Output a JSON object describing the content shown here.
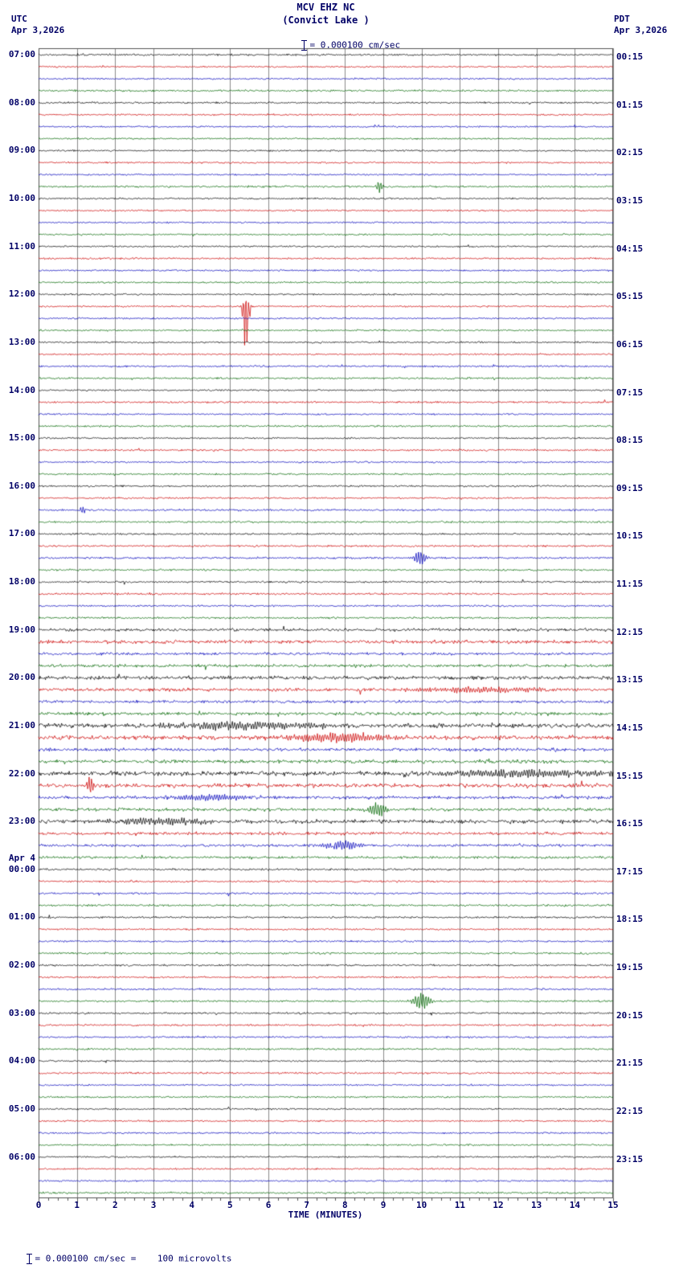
{
  "title": {
    "station": "MCV EHZ NC",
    "location": "(Convict Lake )"
  },
  "header_left": {
    "tz": "UTC",
    "date": "Apr 3,2026"
  },
  "header_right": {
    "tz": "PDT",
    "date": "Apr 3,2026"
  },
  "scale": {
    "top_label": "= 0.000100 cm/sec",
    "bottom_label": "= 0.000100 cm/sec =    100 microvolts"
  },
  "x_axis": {
    "title": "TIME (MINUTES)",
    "tick_labels": [
      "0",
      "1",
      "2",
      "3",
      "4",
      "5",
      "6",
      "7",
      "8",
      "9",
      "10",
      "11",
      "12",
      "13",
      "14",
      "15"
    ]
  },
  "chart_data": {
    "type": "line",
    "minutes": 15,
    "rows_per_hour": 4,
    "x_range": [
      0,
      15
    ],
    "grid_on": true,
    "grid_color": "#8a8a8a",
    "border_color": "#555555",
    "trace_colors": [
      "#000000",
      "#cc0000",
      "#0000bb",
      "#006600"
    ],
    "hour_groups": [
      {
        "utc": "07:00",
        "pdt": "00:15"
      },
      {
        "utc": "08:00",
        "pdt": "01:15"
      },
      {
        "utc": "09:00",
        "pdt": "02:15"
      },
      {
        "utc": "10:00",
        "pdt": "03:15"
      },
      {
        "utc": "11:00",
        "pdt": "04:15"
      },
      {
        "utc": "12:00",
        "pdt": "05:15"
      },
      {
        "utc": "13:00",
        "pdt": "06:15"
      },
      {
        "utc": "14:00",
        "pdt": "07:15"
      },
      {
        "utc": "15:00",
        "pdt": "08:15"
      },
      {
        "utc": "16:00",
        "pdt": "09:15"
      },
      {
        "utc": "17:00",
        "pdt": "10:15"
      },
      {
        "utc": "18:00",
        "pdt": "11:15"
      },
      {
        "utc": "19:00",
        "pdt": "12:15"
      },
      {
        "utc": "20:00",
        "pdt": "13:15"
      },
      {
        "utc": "21:00",
        "pdt": "14:15"
      },
      {
        "utc": "22:00",
        "pdt": "15:15"
      },
      {
        "utc": "23:00",
        "pdt": "16:15"
      },
      {
        "utc": "00:00",
        "utc_prefix": "Apr 4",
        "pdt": "17:15"
      },
      {
        "utc": "01:00",
        "pdt": "18:15"
      },
      {
        "utc": "02:00",
        "pdt": "19:15"
      },
      {
        "utc": "03:00",
        "pdt": "20:15"
      },
      {
        "utc": "04:00",
        "pdt": "21:15"
      },
      {
        "utc": "05:00",
        "pdt": "22:15"
      },
      {
        "utc": "06:00",
        "pdt": "23:15"
      }
    ],
    "noise_levels": [
      0.9,
      0.8,
      0.8,
      0.9,
      0.9,
      0.8,
      0.8,
      0.8,
      0.8,
      0.8,
      0.8,
      0.9,
      0.8,
      0.8,
      0.8,
      0.8,
      0.8,
      0.9,
      0.8,
      0.8,
      0.8,
      0.8,
      0.8,
      0.8,
      0.8,
      0.8,
      0.9,
      0.9,
      0.8,
      0.9,
      0.8,
      0.9,
      0.8,
      0.9,
      0.8,
      0.8,
      0.9,
      0.8,
      1.0,
      0.9,
      0.9,
      0.9,
      1.0,
      0.9,
      0.9,
      1.0,
      0.9,
      0.9,
      1.5,
      1.7,
      1.3,
      1.4,
      1.8,
      1.6,
      1.4,
      1.6,
      2.2,
      2.1,
      1.5,
      1.7,
      2.2,
      1.9,
      1.5,
      1.6,
      2.0,
      1.5,
      1.3,
      1.2,
      1.0,
      0.9,
      0.9,
      1.0,
      0.9,
      0.9,
      0.9,
      1.0,
      0.9,
      0.9,
      0.9,
      0.9,
      0.9,
      0.9,
      0.9,
      0.9,
      0.8,
      0.9,
      0.8,
      0.8,
      0.8,
      0.8,
      0.8,
      0.8,
      0.8,
      0.8,
      0.8,
      0.9
    ],
    "events": [
      {
        "row": 11,
        "minute": 8.9,
        "amp_up": 7,
        "amp_dn": 7,
        "width": 0.06
      },
      {
        "row": 21,
        "minute": 5.42,
        "amp_up": 9,
        "amp_dn": 60,
        "width": 0.06
      },
      {
        "row": 38,
        "minute": 1.15,
        "amp_up": 4,
        "amp_dn": 4,
        "width": 0.06
      },
      {
        "row": 42,
        "minute": 9.95,
        "amp_up": 8,
        "amp_dn": 8,
        "width": 0.12
      },
      {
        "row": 53,
        "minute": 11.5,
        "amp_up": 3,
        "amp_dn": 3,
        "width": 1.2
      },
      {
        "row": 56,
        "minute": 5.5,
        "amp_up": 4,
        "amp_dn": 4,
        "width": 1.5
      },
      {
        "row": 57,
        "minute": 7.8,
        "amp_up": 5,
        "amp_dn": 5,
        "width": 1.0
      },
      {
        "row": 60,
        "minute": 12.5,
        "amp_up": 4,
        "amp_dn": 4,
        "width": 1.6
      },
      {
        "row": 61,
        "minute": 1.35,
        "amp_up": 11,
        "amp_dn": 11,
        "width": 0.06
      },
      {
        "row": 62,
        "minute": 4.5,
        "amp_up": 3,
        "amp_dn": 3,
        "width": 0.9
      },
      {
        "row": 63,
        "minute": 8.85,
        "amp_up": 8,
        "amp_dn": 8,
        "width": 0.18
      },
      {
        "row": 64,
        "minute": 3.2,
        "amp_up": 4,
        "amp_dn": 4,
        "width": 0.8
      },
      {
        "row": 66,
        "minute": 7.9,
        "amp_up": 5,
        "amp_dn": 5,
        "width": 0.35
      },
      {
        "row": 79,
        "minute": 10.0,
        "amp_up": 10,
        "amp_dn": 10,
        "width": 0.16
      }
    ]
  }
}
